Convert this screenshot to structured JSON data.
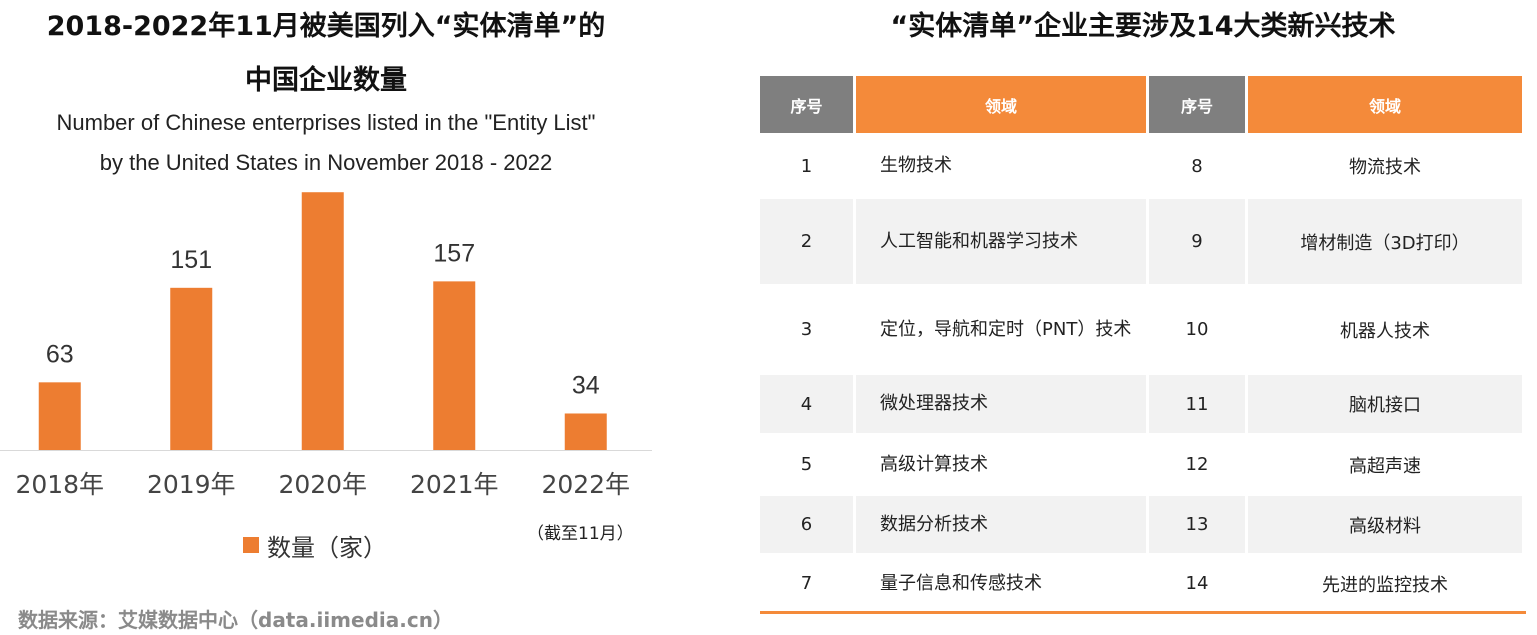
{
  "left": {
    "title_cn_line1": "2018-2022年11月被美国列入“实体清单”的",
    "title_cn_line2": "中国企业数量",
    "title_en_line1": "Number of Chinese enterprises listed in the \"Entity List\"",
    "title_en_line2": "by the United States in November 2018 - 2022",
    "note": "（截至11月）",
    "source": "数据来源：艾媒数据中心（data.iimedia.cn）"
  },
  "chart_data": {
    "type": "bar",
    "title": "2018-2022年11月被美国列入“实体清单”的中国企业数量",
    "subtitle": "Number of Chinese enterprises listed in the \"Entity List\" by the United States in November 2018 - 2022",
    "categories": [
      "2018年",
      "2019年",
      "2020年",
      "2021年",
      "2022年"
    ],
    "series": [
      {
        "name": "数量（家）",
        "values": [
          63,
          151,
          240,
          157,
          34
        ],
        "color": "#ED7D31"
      }
    ],
    "ylim": [
      0,
      270
    ],
    "grid": false,
    "legend": "bottom-center",
    "data_labels": true
  },
  "right": {
    "title": "“实体清单”企业主要涉及14大类新兴技术",
    "headers": {
      "no": "序号",
      "field": "领域"
    },
    "rows": [
      {
        "no1": "1",
        "field1": "生物技术",
        "no2": "8",
        "field2": "物流技术"
      },
      {
        "no1": "2",
        "field1": "人工智能和机器学习技术",
        "no2": "9",
        "field2": "增材制造（3D打印）"
      },
      {
        "no1": "3",
        "field1": "定位，导航和定时（PNT）技术",
        "no2": "10",
        "field2": "机器人技术"
      },
      {
        "no1": "4",
        "field1": "微处理器技术",
        "no2": "11",
        "field2": "脑机接口"
      },
      {
        "no1": "5",
        "field1": "高级计算技术",
        "no2": "12",
        "field2": "高超声速"
      },
      {
        "no1": "6",
        "field1": "数据分析技术",
        "no2": "13",
        "field2": "高级材料"
      },
      {
        "no1": "7",
        "field1": "量子信息和传感技术",
        "no2": "14",
        "field2": "先进的监控技术"
      }
    ]
  },
  "colors": {
    "bar": "#ED7D31",
    "header_orange": "#F48A3A",
    "header_gray": "#7F7F7F",
    "stripe": "#F2F2F2"
  }
}
